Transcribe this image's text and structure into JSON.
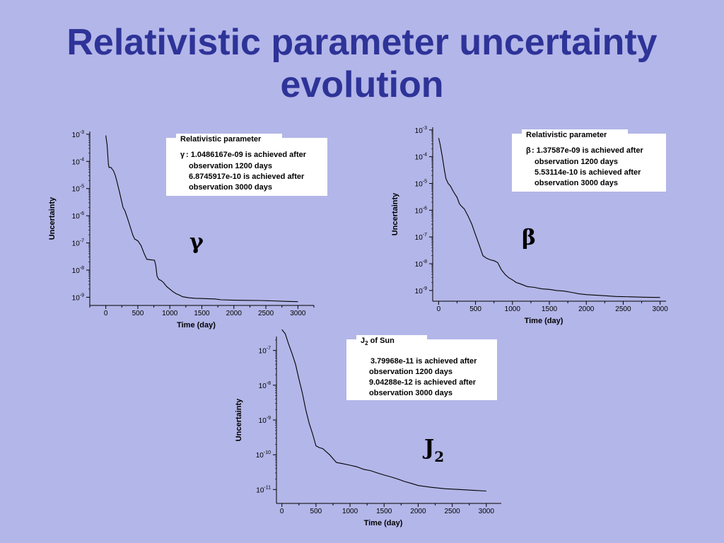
{
  "title": {
    "line1": "Relativistic parameter uncertainty",
    "line2": "evolution"
  },
  "colors": {
    "background": "#b3b6e8",
    "title": "#2e3398",
    "line": "#000000",
    "box": "#ffffff"
  },
  "chart_data": [
    {
      "id": "gamma",
      "type": "line",
      "symbol": "γ",
      "xlabel": "Time  (day)",
      "ylabel": "Uncertainty",
      "xlim": [
        -250,
        3250
      ],
      "xticks": [
        0,
        500,
        1000,
        1500,
        2000,
        2500,
        3000
      ],
      "yscale": "log",
      "ylim_exp": [
        -9.3,
        -2.9
      ],
      "yticks_exp": [
        -3,
        -4,
        -5,
        -6,
        -7,
        -8,
        -9
      ],
      "annotation": {
        "header": "Relativistic parameter",
        "symbol": "γ",
        "line1": ": 1.0486167e-09 is achieved after",
        "line2": "observation 1200 days",
        "line3": "6.8745917e-10 is achieved after",
        "line4": "observation 3000 days"
      },
      "series": [
        {
          "x": [
            0,
            20,
            40,
            50,
            80,
            120,
            150,
            180,
            210,
            240,
            270,
            300,
            340,
            380,
            420,
            450,
            500,
            550,
            600,
            640,
            700,
            760,
            780,
            800,
            830,
            860,
            900,
            950,
            1000,
            1050,
            1100,
            1150,
            1200,
            1300,
            1400,
            1500,
            1600,
            1700,
            1800,
            2000,
            2200,
            2400,
            2600,
            2800,
            3000
          ],
          "y": [
            0.0009,
            0.0004,
            8e-05,
            6e-05,
            6e-05,
            4.5e-05,
            3e-05,
            1.6e-05,
            8e-06,
            4e-06,
            2e-06,
            1.5e-06,
            8e-07,
            4e-07,
            2e-07,
            1.4e-07,
            1.2e-07,
            8e-08,
            4e-08,
            2.5e-08,
            2.4e-08,
            2.3e-08,
            1.5e-08,
            6e-09,
            4.5e-09,
            4.2e-09,
            3.5e-09,
            2.5e-09,
            2e-09,
            1.6e-09,
            1.35e-09,
            1.2e-09,
            1.05e-09,
            9.6e-10,
            9.2e-10,
            9e-10,
            8.8e-10,
            8.7e-10,
            8.1e-10,
            7.8e-10,
            7.7e-10,
            7.6e-10,
            7.4e-10,
            7.1e-10,
            6.87e-10
          ]
        }
      ]
    },
    {
      "id": "beta",
      "type": "line",
      "symbol": "β",
      "xlabel": "Time  (day)",
      "ylabel": "Uncertainty",
      "xlim": [
        -80,
        3080
      ],
      "xticks": [
        0,
        500,
        1000,
        1500,
        2000,
        2500,
        3000
      ],
      "yscale": "log",
      "ylim_exp": [
        -9.4,
        -2.9
      ],
      "yticks_exp": [
        -3,
        -4,
        -5,
        -6,
        -7,
        -8,
        -9
      ],
      "annotation": {
        "header": "Relativistic parameter",
        "symbol": "β",
        "line1": ": 1.37587e-09 is achieved after",
        "line2": "observation 1200 days",
        "line3": "5.53114e-10 is achieved after",
        "line4": "observation 3000 days"
      },
      "series": [
        {
          "x": [
            0,
            20,
            50,
            80,
            100,
            130,
            160,
            200,
            250,
            280,
            300,
            350,
            400,
            450,
            500,
            550,
            600,
            650,
            700,
            750,
            800,
            850,
            900,
            950,
            1000,
            1050,
            1100,
            1200,
            1300,
            1400,
            1500,
            1600,
            1700,
            1800,
            1900,
            2000,
            2200,
            2400,
            2600,
            2800,
            3000
          ],
          "y": [
            0.0005,
            0.0003,
            0.0001,
            3e-05,
            1.5e-05,
            1e-05,
            8e-06,
            5e-06,
            3e-06,
            1.8e-06,
            1.5e-06,
            1.1e-06,
            6e-07,
            3e-07,
            1.2e-07,
            5e-08,
            2e-08,
            1.6e-08,
            1.4e-08,
            1.3e-08,
            1.1e-08,
            6e-09,
            4e-09,
            3e-09,
            2.5e-09,
            2e-09,
            1.8e-09,
            1.4e-09,
            1.3e-09,
            1.15e-09,
            1.1e-09,
            1e-09,
            9.5e-10,
            8.5e-10,
            7.5e-10,
            7e-10,
            6.5e-10,
            6e-10,
            5.8e-10,
            5.6e-10,
            5.5e-10
          ]
        }
      ]
    },
    {
      "id": "j2",
      "type": "line",
      "symbol": "J",
      "symbol_sub": "2",
      "xlabel": "Time  (day)",
      "ylabel": "Uncertainty",
      "xlim": [
        -80,
        3220
      ],
      "xticks": [
        0,
        500,
        1000,
        1500,
        2000,
        2500,
        3000
      ],
      "yscale": "log",
      "ylim_exp": [
        -11.4,
        -6.6
      ],
      "yticks_exp": [
        -7,
        -8,
        -9,
        -10,
        -11
      ],
      "annotation": {
        "header_main": "J",
        "header_sub": "2",
        "header_rest": " of Sun",
        "line1": "3.79968e-11 is achieved after",
        "line2": "observation 1200 days",
        "line3": "9.04288e-12 is achieved after",
        "line4": "observation 3000 days"
      },
      "series": [
        {
          "x": [
            0,
            50,
            100,
            150,
            200,
            250,
            300,
            350,
            400,
            450,
            500,
            550,
            600,
            700,
            800,
            900,
            1000,
            1100,
            1200,
            1300,
            1400,
            1500,
            1600,
            1700,
            1800,
            1900,
            2000,
            2200,
            2400,
            2600,
            2800,
            3000
          ],
          "y": [
            4e-07,
            3e-07,
            1.5e-07,
            8e-08,
            4e-08,
            1.5e-08,
            6e-09,
            2e-09,
            8e-10,
            4e-10,
            1.8e-10,
            1.6e-10,
            1.5e-10,
            1e-10,
            6e-11,
            5.5e-11,
            5e-11,
            4.5e-11,
            3.8e-11,
            3.5e-11,
            3e-11,
            2.6e-11,
            2.3e-11,
            2e-11,
            1.7e-11,
            1.5e-11,
            1.3e-11,
            1.15e-11,
            1.05e-11,
            1e-11,
            9.5e-12,
            9.04e-12
          ]
        }
      ]
    }
  ]
}
